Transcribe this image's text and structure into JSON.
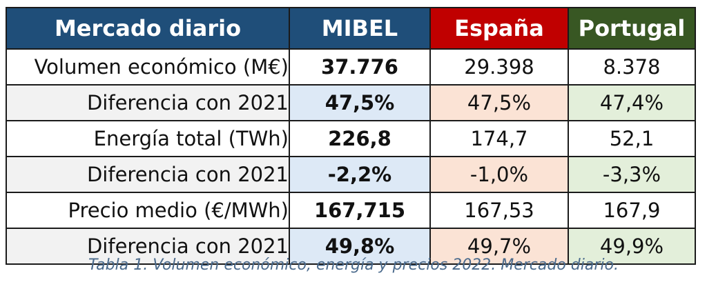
{
  "table": {
    "headers": {
      "label": "Mercado diario",
      "mibel": "MIBEL",
      "espana": "España",
      "portugal": "Portugal"
    },
    "colors": {
      "header_blue": "#1f4e79",
      "header_red": "#c00000",
      "header_green": "#385723",
      "tint_blue": "#dde9f6",
      "tint_orange": "#fbe3d5",
      "tint_green": "#e3efda",
      "tint_gray": "#f2f2f2"
    },
    "rows": [
      {
        "label": "Volumen económico (M€)",
        "mibel": "37.776",
        "espana": "29.398",
        "portugal": "8.378"
      },
      {
        "label": "Diferencia con 2021",
        "mibel": "47,5%",
        "espana": "47,5%",
        "portugal": "47,4%"
      },
      {
        "label": "Energía total (TWh)",
        "mibel": "226,8",
        "espana": "174,7",
        "portugal": "52,1"
      },
      {
        "label": "Diferencia con 2021",
        "mibel": "-2,2%",
        "espana": "-1,0%",
        "portugal": "-3,3%"
      },
      {
        "label": "Precio medio (€/MWh)",
        "mibel": "167,715",
        "espana": "167,53",
        "portugal": "167,9"
      },
      {
        "label": "Diferencia con 2021",
        "mibel": "49,8%",
        "espana": "49,7%",
        "portugal": "49,9%"
      }
    ]
  },
  "caption": "Tabla 1. Volumen económico, energía y precios 2022. Mercado diario."
}
